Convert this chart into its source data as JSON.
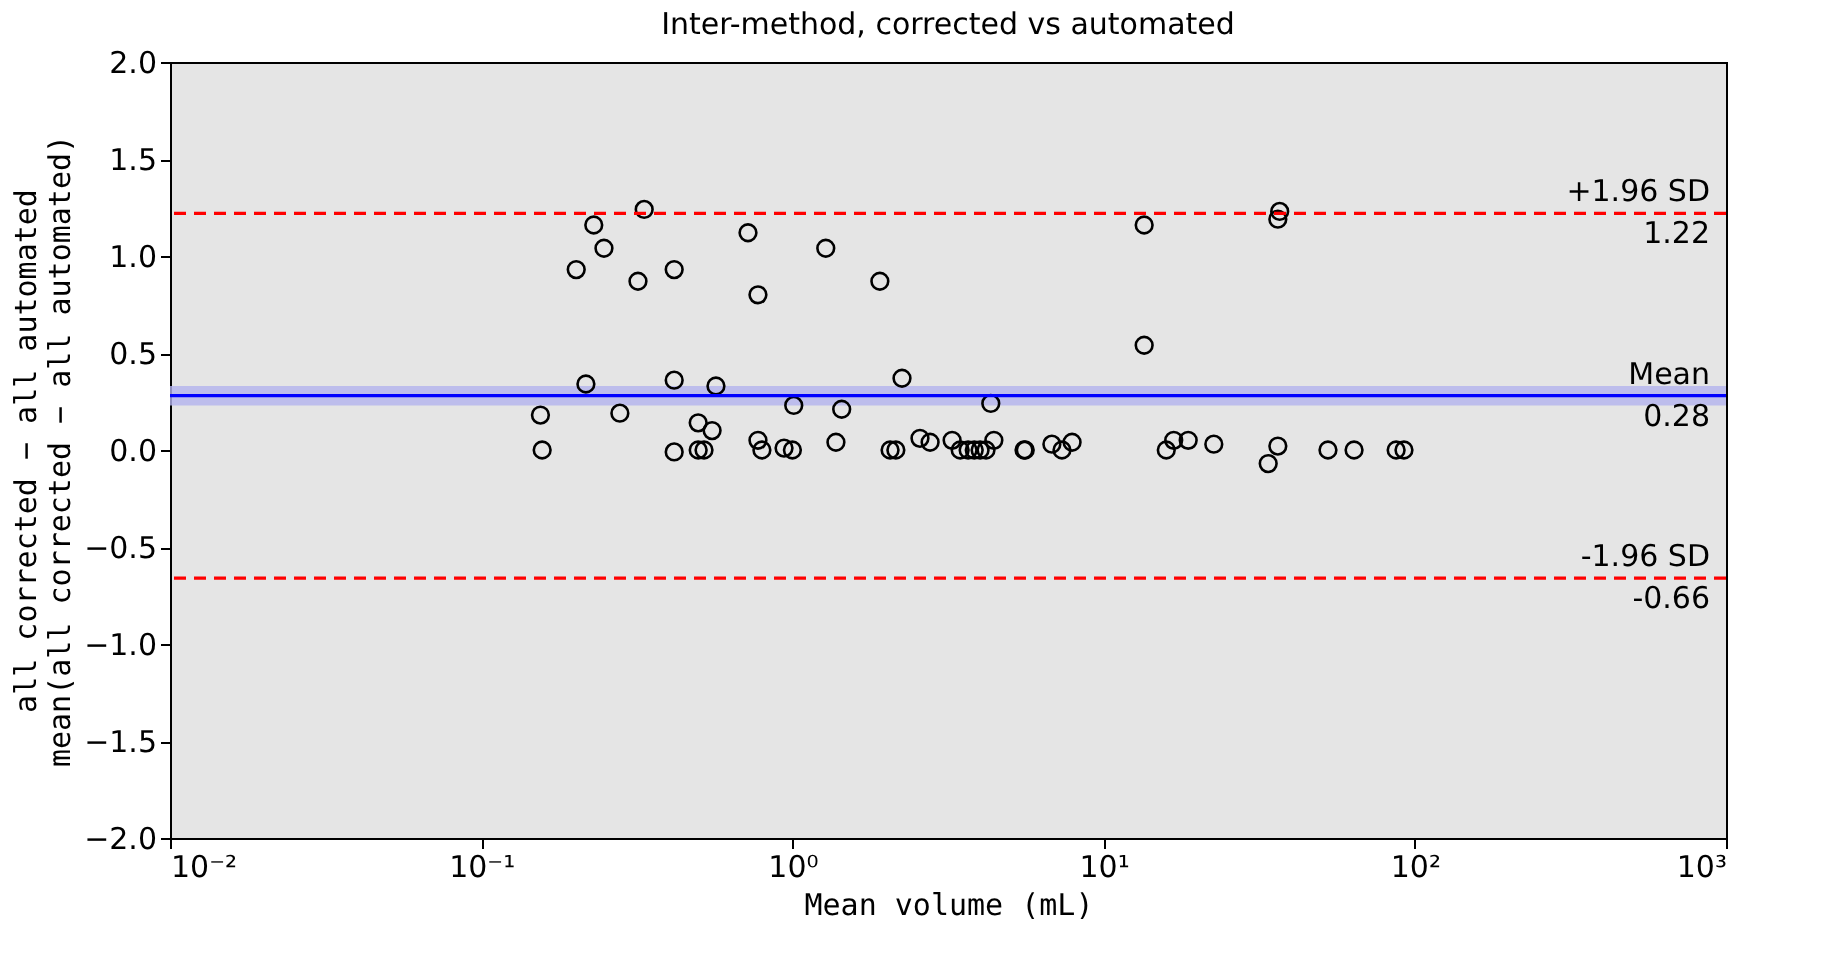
{
  "chart_data": {
    "type": "scatter",
    "title": "Inter-method, corrected vs automated",
    "xlabel": "Mean volume (mL)",
    "ylabel": "all corrected − all automated\nmean(all corrected − all automated)",
    "log": "x",
    "marker": "circle",
    "grid": false,
    "xlim": [
      0.01,
      1000
    ],
    "xticks": [
      {
        "value": 0.01,
        "label": "10⁻²"
      },
      {
        "value": 0.1,
        "label": "10⁻¹"
      },
      {
        "value": 1,
        "label": "10⁰"
      },
      {
        "value": 10,
        "label": "10¹"
      },
      {
        "value": 100,
        "label": "10²"
      },
      {
        "value": 1000,
        "label": "10³"
      }
    ],
    "ylim": [
      -2.0,
      2.0
    ],
    "yticks": [
      {
        "value": -2,
        "label": "−2.0"
      },
      {
        "value": -1.5,
        "label": "−1.5"
      },
      {
        "value": -1,
        "label": "−1.0"
      },
      {
        "value": -0.5,
        "label": "−0.5"
      },
      {
        "value": 0,
        "label": "0.0"
      },
      {
        "value": 0.5,
        "label": "0.5"
      },
      {
        "value": 1,
        "label": "1.0"
      },
      {
        "value": 1.5,
        "label": "1.5"
      },
      {
        "value": 2,
        "label": "2.0"
      }
    ],
    "series": [
      {
        "color": "#000000",
        "x": [
          0.155,
          0.157,
          0.202,
          0.23,
          0.248,
          0.217,
          0.279,
          0.319,
          0.334,
          0.417,
          0.417,
          0.417,
          0.498,
          0.498,
          0.552,
          0.52,
          0.568,
          0.72,
          0.775,
          0.775,
          0.798,
          0.94,
          1.0,
          1.01,
          1.28,
          1.38,
          1.44,
          1.91,
          2.25,
          2.06,
          2.15,
          2.57,
          2.77,
          3.26,
          3.46,
          3.67,
          3.84,
          4.01,
          4.19,
          4.44,
          4.34,
          5.55,
          5.6,
          6.82,
          7.35,
          7.92,
          13.5,
          13.5,
          15.9,
          16.8,
          18.7,
          22.6,
          33.8,
          36.3,
          36.3,
          36.8,
          52.6,
          63.8,
          87.1,
          92.3
        ],
        "values": [
          0.18,
          0.0,
          0.93,
          1.16,
          1.04,
          0.34,
          0.19,
          0.87,
          1.24,
          0.93,
          0.36,
          -0.01,
          0.14,
          0.0,
          0.1,
          0.0,
          0.33,
          1.12,
          0.8,
          0.05,
          0.0,
          0.01,
          0.0,
          0.23,
          1.04,
          0.04,
          0.21,
          0.87,
          0.37,
          0.0,
          0.0,
          0.06,
          0.04,
          0.05,
          0.0,
          0.0,
          0.0,
          0.0,
          0.0,
          0.05,
          0.24,
          0.0,
          0.0,
          0.03,
          0.0,
          0.04,
          1.16,
          0.54,
          0.0,
          0.05,
          0.05,
          0.03,
          -0.07,
          0.02,
          1.19,
          1.23,
          0.0,
          0.0,
          0.0,
          0.0
        ]
      }
    ],
    "ref_lines": [
      {
        "axis": "y",
        "value": 1.22,
        "label": "+1.96 SD",
        "color": "#ff0000",
        "line_style": "dashed"
      },
      {
        "axis": "y",
        "value": 0.28,
        "label": "Mean",
        "color": "#0000ff",
        "line_style": "solid"
      },
      {
        "axis": "y",
        "value": -0.66,
        "label": "-1.96 SD",
        "color": "#ff0000",
        "line_style": "dashed"
      }
    ],
    "bands": [
      {
        "axis": "y",
        "from": 0.23,
        "to": 0.33,
        "color": "#b3b3ee"
      }
    ],
    "annotations": [
      {
        "text": "1.22",
        "y": 1.22
      },
      {
        "text": "0.28",
        "y": 0.28
      },
      {
        "text": "-0.66",
        "y": -0.66
      }
    ]
  }
}
